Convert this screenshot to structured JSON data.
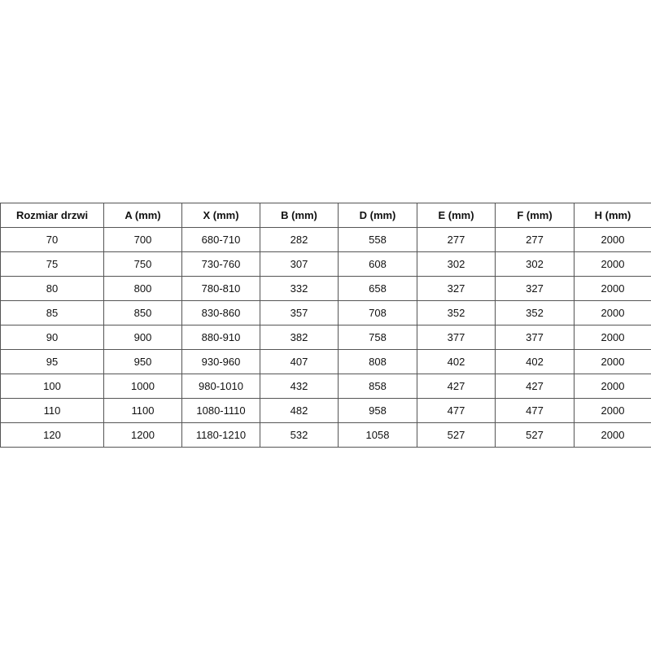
{
  "table": {
    "header": [
      "Rozmiar drzwi",
      "A (mm)",
      "X (mm)",
      "B (mm)",
      "D (mm)",
      "E (mm)",
      "F (mm)",
      "H (mm)"
    ],
    "rows": [
      [
        70,
        700,
        "680-710",
        282,
        558,
        277,
        277,
        2000
      ],
      [
        75,
        750,
        "730-760",
        307,
        608,
        302,
        302,
        2000
      ],
      [
        80,
        800,
        "780-810",
        332,
        658,
        327,
        327,
        2000
      ],
      [
        85,
        850,
        "830-860",
        357,
        708,
        352,
        352,
        2000
      ],
      [
        90,
        900,
        "880-910",
        382,
        758,
        377,
        377,
        2000
      ],
      [
        95,
        950,
        "930-960",
        407,
        808,
        402,
        402,
        2000
      ],
      [
        100,
        1000,
        "980-1010",
        432,
        858,
        427,
        427,
        2000
      ],
      [
        110,
        1100,
        "1080-1110",
        482,
        958,
        477,
        477,
        2000
      ],
      [
        120,
        1200,
        "1180-1210",
        532,
        1058,
        527,
        527,
        2000
      ]
    ]
  }
}
